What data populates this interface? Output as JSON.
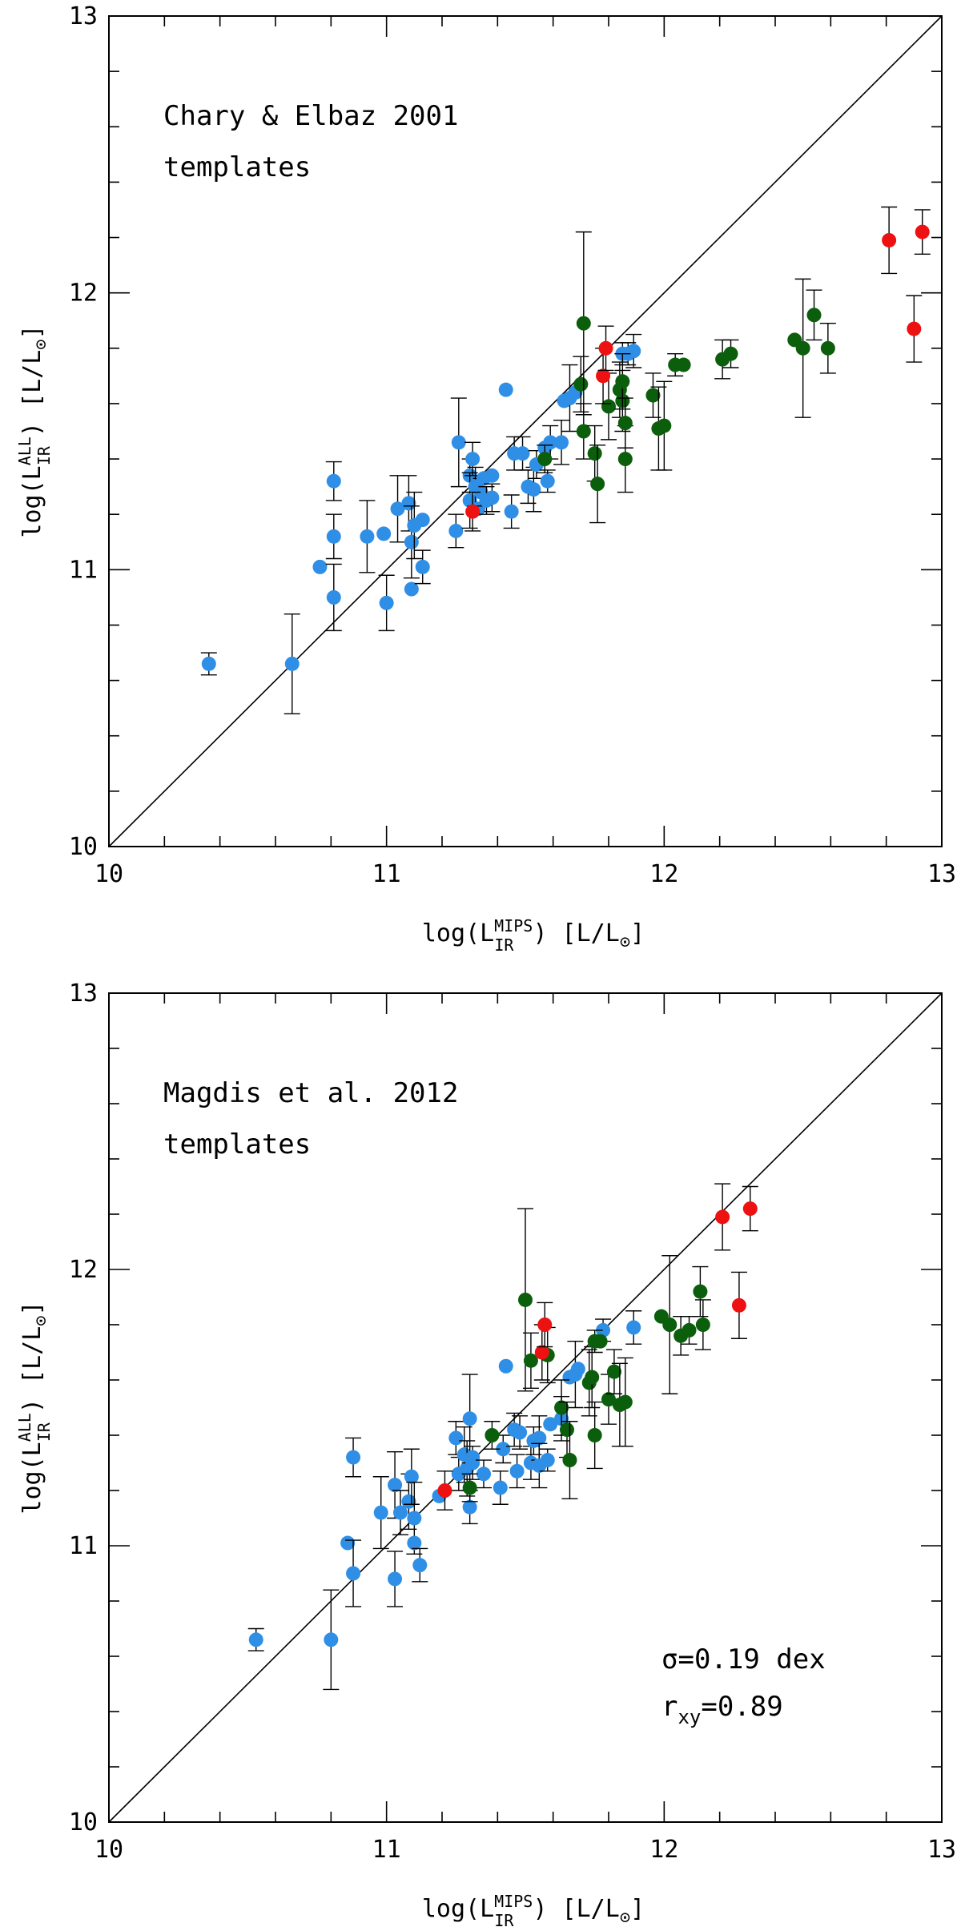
{
  "chart_data": [
    {
      "type": "scatter",
      "id": "top",
      "annotation_lines": [
        "Chary & Elbaz 2001",
        "templates"
      ],
      "xlim": [
        10,
        13
      ],
      "ylim": [
        10,
        13
      ],
      "xticks": [
        "10",
        "11",
        "12",
        "13"
      ],
      "yticks": [
        "10",
        "11",
        "12",
        "13"
      ],
      "xlabel": {
        "prefix": "log(L",
        "sub": "IR",
        "sup": "MIPS",
        "suffix": ") [L/L",
        "sun": "⊙",
        "close": "]"
      },
      "ylabel": {
        "prefix": "log(L",
        "sub": "IR",
        "sup": "ALL",
        "suffix": ") [L/L",
        "sun": "⊙",
        "close": "]"
      },
      "one_to_one_line": true,
      "colors": {
        "blue": "#2f8fe6",
        "green": "#0b5e0b",
        "red": "#ee1111"
      },
      "series": [
        {
          "name": "blue",
          "points": [
            [
              10.36,
              10.66,
              0.04
            ],
            [
              10.66,
              10.66,
              0.18
            ],
            [
              10.76,
              11.01,
              0
            ],
            [
              10.81,
              11.32,
              0.07
            ],
            [
              10.81,
              11.12,
              0.08
            ],
            [
              10.81,
              10.9,
              0.12
            ],
            [
              10.93,
              11.12,
              0.13
            ],
            [
              10.99,
              11.13,
              0
            ],
            [
              11.0,
              10.88,
              0.1
            ],
            [
              11.04,
              11.22,
              0.12
            ],
            [
              11.08,
              11.24,
              0.1
            ],
            [
              11.09,
              11.1,
              0.13
            ],
            [
              11.09,
              10.93,
              0
            ],
            [
              11.1,
              11.16,
              0.12
            ],
            [
              11.13,
              11.18,
              0
            ],
            [
              11.13,
              11.01,
              0.06
            ],
            [
              11.25,
              11.14,
              0.06
            ],
            [
              11.26,
              11.46,
              0.16
            ],
            [
              11.3,
              11.34,
              0.06
            ],
            [
              11.3,
              11.25,
              0.1
            ],
            [
              11.31,
              11.4,
              0.06
            ],
            [
              11.32,
              11.3,
              0.07
            ],
            [
              11.33,
              11.22,
              0
            ],
            [
              11.34,
              11.28,
              0.05
            ],
            [
              11.35,
              11.33,
              0
            ],
            [
              11.36,
              11.25,
              0.05
            ],
            [
              11.38,
              11.26,
              0.05
            ],
            [
              11.38,
              11.34,
              0
            ],
            [
              11.43,
              11.65,
              0
            ],
            [
              11.45,
              11.21,
              0.06
            ],
            [
              11.46,
              11.42,
              0.06
            ],
            [
              11.49,
              11.42,
              0.06
            ],
            [
              11.51,
              11.3,
              0.06
            ],
            [
              11.53,
              11.29,
              0.08
            ],
            [
              11.54,
              11.38,
              0.05
            ],
            [
              11.57,
              11.44,
              0
            ],
            [
              11.58,
              11.32,
              0.04
            ],
            [
              11.59,
              11.46,
              0.06
            ],
            [
              11.63,
              11.46,
              0.08
            ],
            [
              11.64,
              11.61,
              0
            ],
            [
              11.66,
              11.62,
              0.12
            ],
            [
              11.68,
              11.64,
              0
            ],
            [
              11.85,
              11.78,
              0.04
            ],
            [
              11.87,
              11.78,
              0.04
            ],
            [
              11.89,
              11.79,
              0.06
            ]
          ]
        },
        {
          "name": "green",
          "points": [
            [
              11.57,
              11.4,
              0.05
            ],
            [
              11.7,
              11.67,
              0.1
            ],
            [
              11.71,
              11.89,
              0.33
            ],
            [
              11.71,
              11.5,
              0.1
            ],
            [
              11.75,
              11.42,
              0.1
            ],
            [
              11.76,
              11.31,
              0.14
            ],
            [
              11.8,
              11.59,
              0.12
            ],
            [
              11.84,
              11.65,
              0.1
            ],
            [
              11.85,
              11.61,
              0.11
            ],
            [
              11.85,
              11.68,
              0.1
            ],
            [
              11.86,
              11.4,
              0.12
            ],
            [
              11.86,
              11.53,
              0.09
            ],
            [
              11.96,
              11.63,
              0.08
            ],
            [
              11.98,
              11.51,
              0.15
            ],
            [
              12.0,
              11.52,
              0.16
            ],
            [
              12.04,
              11.74,
              0.04
            ],
            [
              12.07,
              11.74,
              0
            ],
            [
              12.21,
              11.76,
              0.07
            ],
            [
              12.24,
              11.78,
              0.05
            ],
            [
              12.47,
              11.83,
              0
            ],
            [
              12.5,
              11.8,
              0.25
            ],
            [
              12.54,
              11.92,
              0.09
            ],
            [
              12.59,
              11.8,
              0.09
            ]
          ]
        },
        {
          "name": "red",
          "points": [
            [
              11.31,
              11.21,
              0.07
            ],
            [
              11.78,
              11.7,
              0.1
            ],
            [
              11.79,
              11.8,
              0.08
            ],
            [
              12.81,
              12.19,
              0.12
            ],
            [
              12.9,
              11.87,
              0.12
            ],
            [
              12.93,
              12.22,
              0.08
            ]
          ]
        }
      ]
    },
    {
      "type": "scatter",
      "id": "bottom",
      "annotation_lines": [
        "Magdis et al. 2012",
        "templates"
      ],
      "stats": {
        "sigma": "σ=0.19 dex",
        "r_prefix": "r",
        "r_sub": "xy",
        "r_value": "=0.89"
      },
      "xlim": [
        10,
        13
      ],
      "ylim": [
        10,
        13
      ],
      "xticks": [
        "10",
        "11",
        "12",
        "13"
      ],
      "yticks": [
        "10",
        "11",
        "12",
        "13"
      ],
      "xlabel": {
        "prefix": "log(L",
        "sub": "IR",
        "sup": "MIPS",
        "suffix": ") [L/L",
        "sun": "⊙",
        "close": "]"
      },
      "ylabel": {
        "prefix": "log(L",
        "sub": "IR",
        "sup": "ALL",
        "suffix": ") [L/L",
        "sun": "⊙",
        "close": "]"
      },
      "one_to_one_line": true,
      "colors": {
        "blue": "#2f8fe6",
        "green": "#0b5e0b",
        "red": "#ee1111"
      },
      "series": [
        {
          "name": "blue",
          "points": [
            [
              10.53,
              10.66,
              0.04
            ],
            [
              10.8,
              10.66,
              0.18
            ],
            [
              10.86,
              11.01,
              0
            ],
            [
              10.88,
              11.32,
              0.07
            ],
            [
              10.88,
              10.9,
              0.12
            ],
            [
              10.98,
              11.12,
              0.13
            ],
            [
              11.03,
              11.22,
              0.12
            ],
            [
              11.03,
              10.88,
              0.1
            ],
            [
              11.05,
              11.12,
              0.08
            ],
            [
              11.08,
              11.16,
              0.1
            ],
            [
              11.09,
              11.25,
              0.1
            ],
            [
              11.1,
              11.1,
              0.13
            ],
            [
              11.1,
              11.01,
              0
            ],
            [
              11.12,
              10.93,
              0.06
            ],
            [
              11.19,
              11.18,
              0
            ],
            [
              11.25,
              11.39,
              0.06
            ],
            [
              11.26,
              11.26,
              0.06
            ],
            [
              11.28,
              11.33,
              0.1
            ],
            [
              11.29,
              11.28,
              0.1
            ],
            [
              11.3,
              11.46,
              0.16
            ],
            [
              11.3,
              11.14,
              0.06
            ],
            [
              11.31,
              11.3,
              0.06
            ],
            [
              11.31,
              11.32,
              0
            ],
            [
              11.35,
              11.26,
              0.05
            ],
            [
              11.41,
              11.21,
              0.06
            ],
            [
              11.42,
              11.35,
              0.05
            ],
            [
              11.43,
              11.65,
              0
            ],
            [
              11.46,
              11.42,
              0.06
            ],
            [
              11.47,
              11.27,
              0.06
            ],
            [
              11.48,
              11.41,
              0.06
            ],
            [
              11.52,
              11.3,
              0.06
            ],
            [
              11.53,
              11.38,
              0.05
            ],
            [
              11.55,
              11.39,
              0.08
            ],
            [
              11.55,
              11.29,
              0.08
            ],
            [
              11.58,
              11.31,
              0.04
            ],
            [
              11.59,
              11.44,
              0
            ],
            [
              11.63,
              11.46,
              0.08
            ],
            [
              11.66,
              11.61,
              0
            ],
            [
              11.68,
              11.62,
              0.12
            ],
            [
              11.69,
              11.64,
              0
            ],
            [
              11.78,
              11.78,
              0.04
            ],
            [
              11.89,
              11.79,
              0.06
            ]
          ]
        },
        {
          "name": "green",
          "points": [
            [
              11.3,
              11.21,
              0.05
            ],
            [
              11.38,
              11.4,
              0.05
            ],
            [
              11.5,
              11.89,
              0.33
            ],
            [
              11.52,
              11.67,
              0.1
            ],
            [
              11.58,
              11.69,
              0.1
            ],
            [
              11.63,
              11.5,
              0.1
            ],
            [
              11.65,
              11.42,
              0.1
            ],
            [
              11.66,
              11.31,
              0.14
            ],
            [
              11.73,
              11.59,
              0.12
            ],
            [
              11.74,
              11.61,
              0.11
            ],
            [
              11.75,
              11.4,
              0.12
            ],
            [
              11.75,
              11.74,
              0.04
            ],
            [
              11.77,
              11.74,
              0
            ],
            [
              11.8,
              11.53,
              0.09
            ],
            [
              11.82,
              11.63,
              0.08
            ],
            [
              11.84,
              11.51,
              0.15
            ],
            [
              11.86,
              11.52,
              0.16
            ],
            [
              11.99,
              11.83,
              0
            ],
            [
              12.02,
              11.8,
              0.25
            ],
            [
              12.06,
              11.76,
              0.07
            ],
            [
              12.09,
              11.78,
              0.05
            ],
            [
              12.13,
              11.92,
              0.09
            ],
            [
              12.14,
              11.8,
              0.09
            ]
          ]
        },
        {
          "name": "red",
          "points": [
            [
              11.21,
              11.2,
              0.07
            ],
            [
              11.56,
              11.7,
              0.1
            ],
            [
              11.57,
              11.8,
              0.08
            ],
            [
              12.21,
              12.19,
              0.12
            ],
            [
              12.27,
              11.87,
              0.12
            ],
            [
              12.31,
              12.22,
              0.08
            ]
          ]
        }
      ]
    }
  ]
}
